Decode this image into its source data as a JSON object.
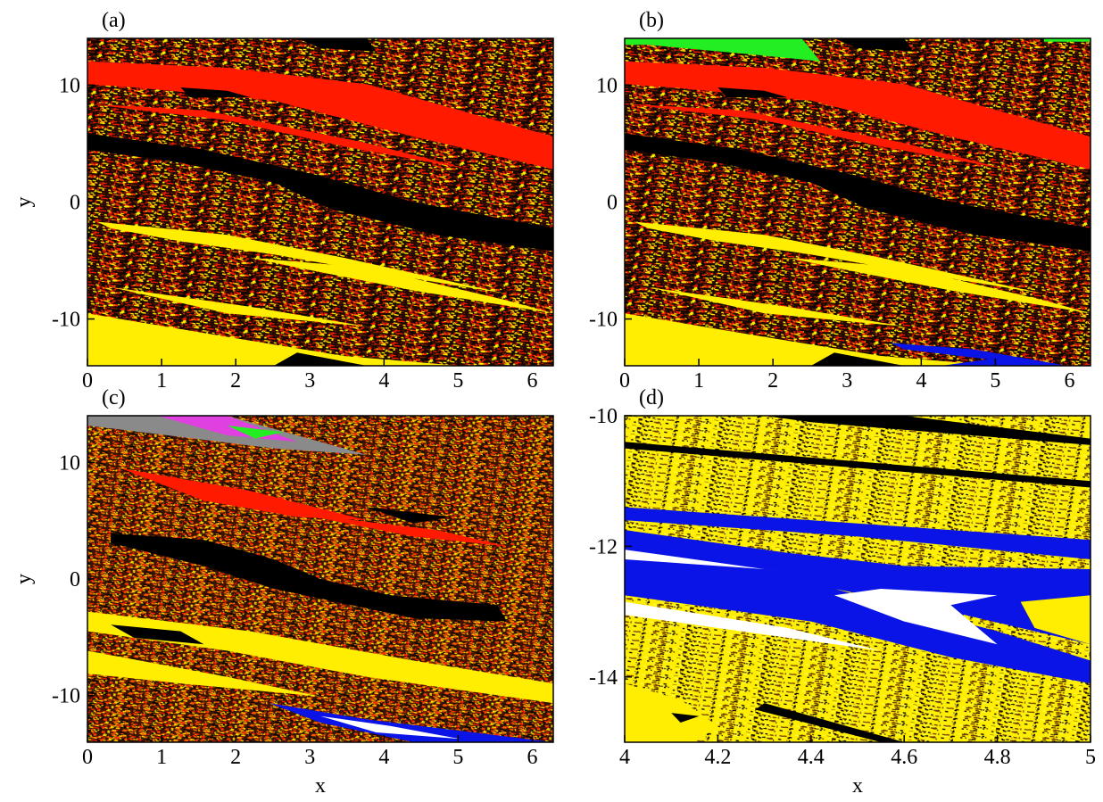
{
  "chart_data": [
    {
      "type": "basin",
      "label": "(a)",
      "ylabel": "y",
      "xlim": [
        0,
        6.283
      ],
      "ylim": [
        -14,
        14
      ],
      "xticks": [
        0,
        1,
        2,
        3,
        4,
        5,
        6
      ],
      "yticks": [
        -10,
        0,
        10
      ]
    },
    {
      "type": "basin",
      "label": "(b)",
      "xlim": [
        0,
        6.283
      ],
      "ylim": [
        -14,
        14
      ],
      "xticks": [
        0,
        1,
        2,
        3,
        4,
        5,
        6
      ],
      "yticks": [
        -10,
        0,
        10
      ]
    },
    {
      "type": "basin",
      "label": "(c)",
      "xlabel": "x",
      "ylabel": "y",
      "xlim": [
        0,
        6.283
      ],
      "ylim": [
        -14,
        14
      ],
      "xticks": [
        0,
        1,
        2,
        3,
        4,
        5,
        6
      ],
      "yticks": [
        -10,
        0,
        10
      ]
    },
    {
      "type": "basin",
      "label": "(d)",
      "xlabel": "x",
      "xlim": [
        4,
        5
      ],
      "ylim": [
        -15,
        -10
      ],
      "xticks": [
        4,
        4.2,
        4.4,
        4.6,
        4.8,
        5
      ],
      "yticks": [
        -14,
        -12,
        -10
      ]
    }
  ]
}
